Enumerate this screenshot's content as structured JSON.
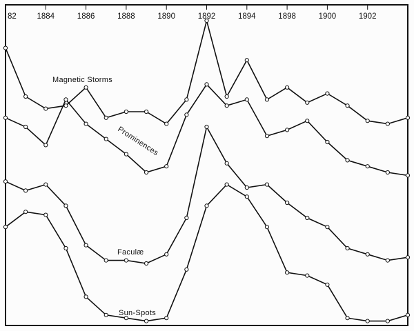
{
  "chart_data": {
    "type": "line",
    "title": "",
    "xlabel": "",
    "ylabel": "",
    "x": [
      1882,
      1883,
      1884,
      1885,
      1886,
      1887,
      1888,
      1889,
      1890,
      1891,
      1892,
      1893,
      1894,
      1895,
      1896,
      1897,
      1898,
      1899,
      1900,
      1901,
      1902
    ],
    "x_tick_labels": [
      "82",
      "1884",
      "1886",
      "1888",
      "1890",
      "1892",
      "1894",
      "1898",
      "1900",
      "1902"
    ],
    "y_axis": "none (relative levels, higher = more activity)",
    "ylim": [
      0,
      100
    ],
    "grid": false,
    "legend": "none; series labelled directly on the lines",
    "line_color": "#111111",
    "marker": "open circle",
    "series": [
      {
        "name": "Magnetic Storms",
        "values": [
          91,
          75,
          71,
          72,
          78,
          68,
          70,
          70,
          66,
          74,
          100,
          75,
          87,
          74,
          78,
          73,
          76,
          72,
          67,
          66,
          68
        ]
      },
      {
        "name": "Prominences",
        "values": [
          68,
          65,
          59,
          74,
          66,
          61,
          56,
          50,
          52,
          69,
          79,
          72,
          74,
          62,
          64,
          67,
          60,
          54,
          52,
          50,
          49
        ]
      },
      {
        "name": "Faculæ",
        "values": [
          47,
          44,
          46,
          39,
          26,
          21,
          21,
          20,
          23,
          35,
          65,
          53,
          45,
          46,
          40,
          35,
          32,
          25,
          23,
          21,
          22
        ]
      },
      {
        "name": "Sun-Spots",
        "values": [
          32,
          37,
          36,
          25,
          9,
          3,
          2,
          1,
          2,
          18,
          39,
          46,
          42,
          32,
          17,
          16,
          13,
          2,
          1,
          1,
          3
        ]
      }
    ]
  }
}
